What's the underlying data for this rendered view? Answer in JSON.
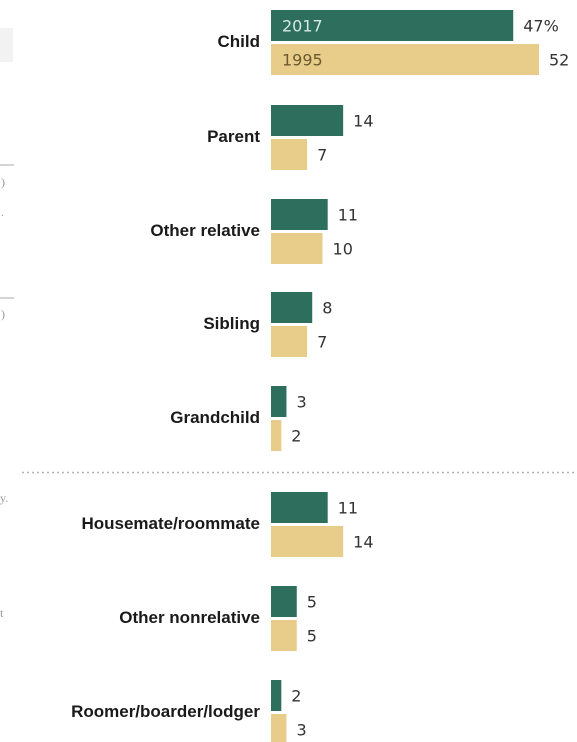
{
  "chart_data": {
    "type": "bar",
    "orientation": "horizontal",
    "categories": [
      "Child",
      "Parent",
      "Other relative",
      "Sibling",
      "Grandchild",
      "Housemate/roommate",
      "Other nonrelative",
      "Roomer/boarder/lodger"
    ],
    "groups": [
      [
        "Child",
        "Parent",
        "Other relative",
        "Sibling",
        "Grandchild"
      ],
      [
        "Housemate/roommate",
        "Other nonrelative",
        "Roomer/boarder/lodger"
      ]
    ],
    "series": [
      {
        "name": "2017",
        "values": [
          47,
          14,
          11,
          8,
          3,
          11,
          5,
          2
        ],
        "color": "#2e6e5c"
      },
      {
        "name": "1995",
        "values": [
          52,
          7,
          10,
          7,
          2,
          14,
          5,
          3
        ],
        "color": "#e8cc8a"
      }
    ],
    "value_labels": [
      [
        "47%",
        "14",
        "11",
        "8",
        "3",
        "11",
        "5",
        "2"
      ],
      [
        "52",
        "7",
        "10",
        "7",
        "2",
        "14",
        "5",
        "3"
      ]
    ],
    "in_bar_label_colors": [
      "#d6eae4",
      "#6b5a2f"
    ],
    "legend": "inside first bars",
    "xlim": [
      0,
      52
    ],
    "grid": false,
    "group_separator": "dotted",
    "title": "",
    "xlabel": "",
    "ylabel": ""
  },
  "edge_fragments": [
    ")",
    ".",
    ")",
    "y.",
    "t"
  ]
}
